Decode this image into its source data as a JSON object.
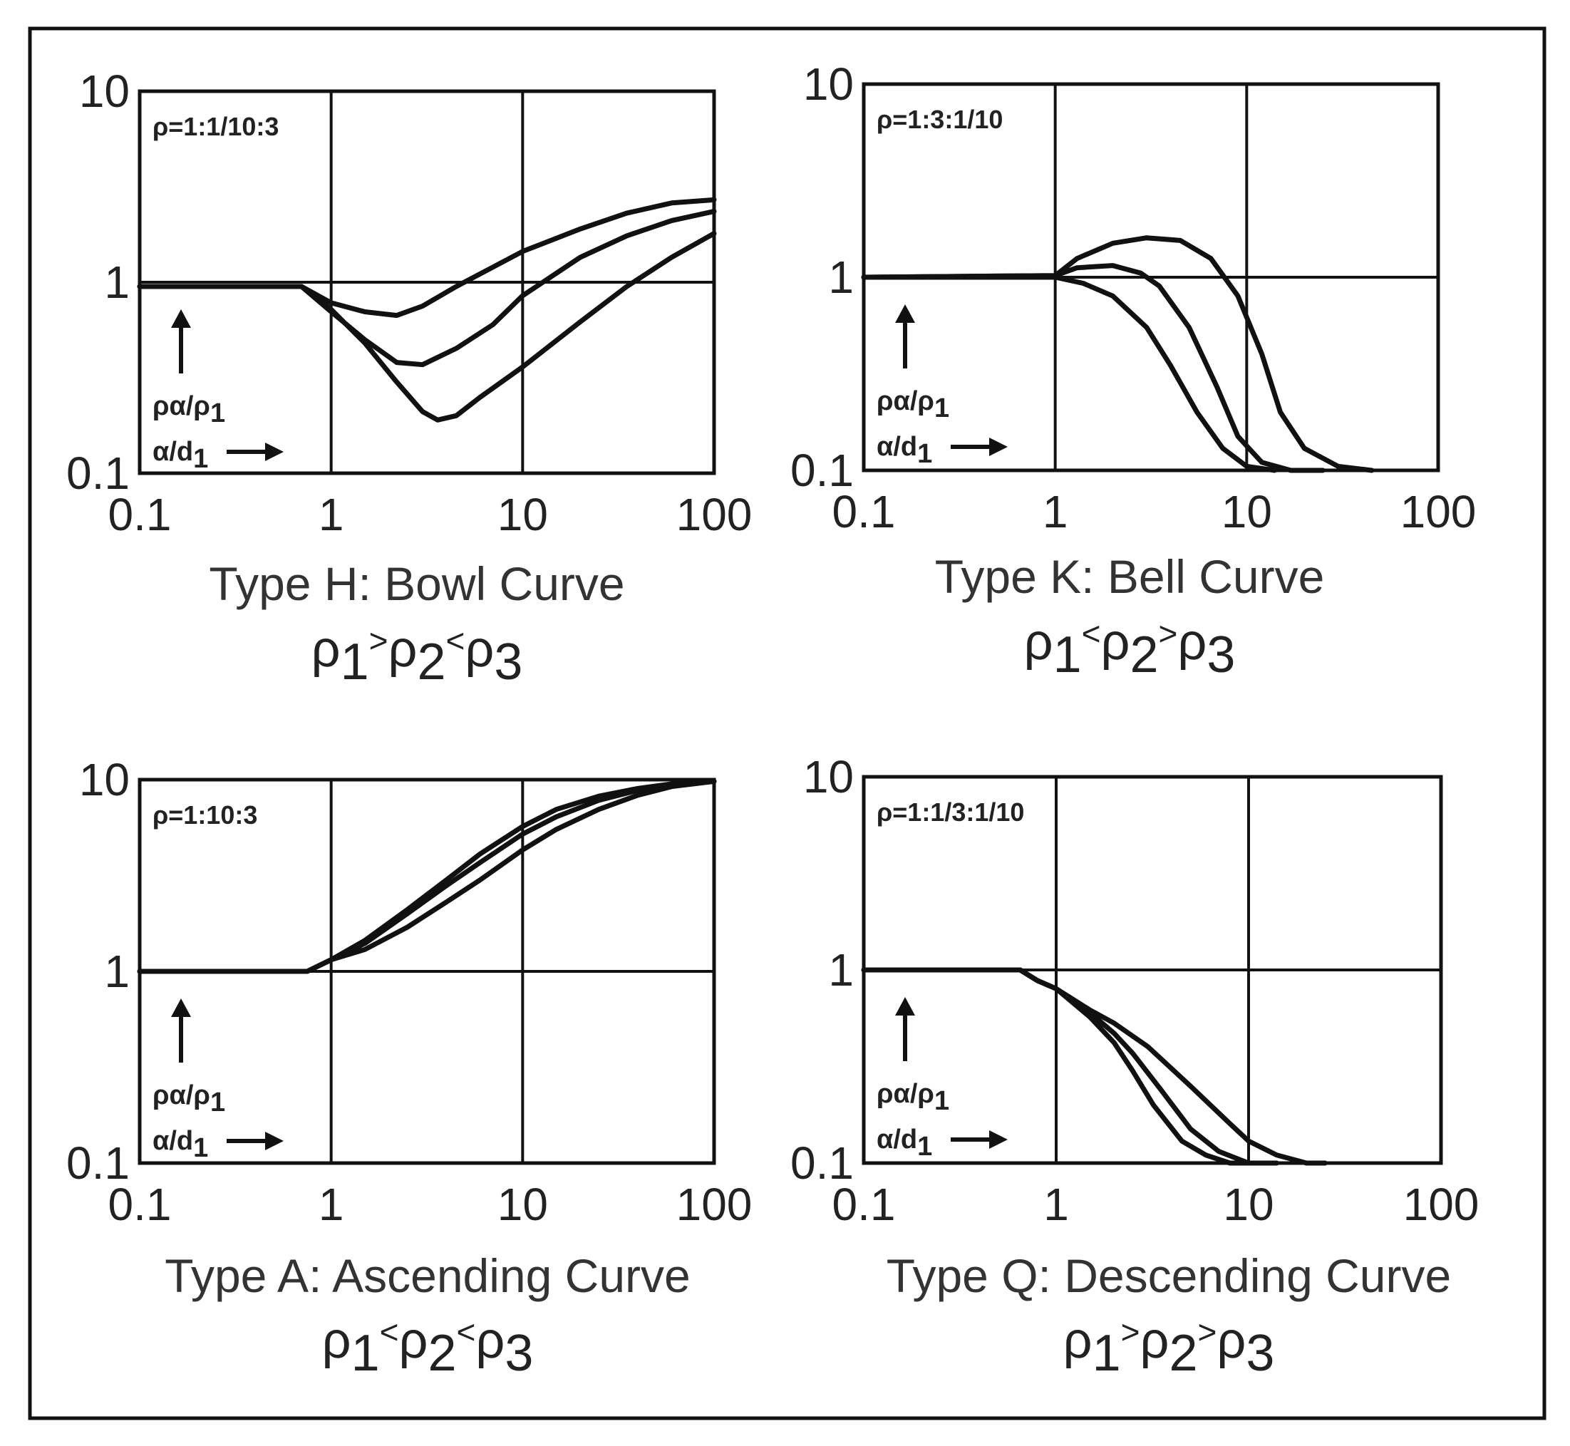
{
  "colors": {
    "line": "#111111",
    "text": "#222222",
    "background": "#ffffff"
  },
  "chart_data": [
    {
      "type": "line",
      "panel": "top-left",
      "title": "Type H: Bowl Curve",
      "condition": {
        "p1": "ρ",
        "s1": "1",
        "op1": ">",
        "p2": "ρ",
        "s2": "2",
        "op2": "<",
        "p3": "ρ",
        "s3": "3"
      },
      "ratio_label": "ρ=1:1/10:3",
      "ylabel": "ρα/ρ1",
      "xlabel": "α/d1",
      "ylabel_main": "ρα/ρ",
      "ylabel_sub": "1",
      "xlabel_main": "α/d",
      "xlabel_sub": "1",
      "x_scale": "log",
      "y_scale": "log",
      "xlim": [
        0.1,
        100
      ],
      "ylim": [
        0.1,
        10
      ],
      "x_ticks": [
        "0.1",
        "1",
        "10",
        "100"
      ],
      "y_ticks": [
        "0.1",
        "1",
        "10"
      ],
      "grid": true,
      "series": [
        {
          "x": [
            0.1,
            0.7,
            1,
            1.5,
            2.2,
            3,
            4.5,
            7,
            10,
            20,
            35,
            60,
            100
          ],
          "y": [
            0.95,
            0.95,
            0.78,
            0.7,
            0.67,
            0.75,
            0.95,
            1.2,
            1.45,
            1.9,
            2.3,
            2.6,
            2.7
          ]
        },
        {
          "x": [
            0.1,
            0.7,
            1,
            1.5,
            2.2,
            3,
            4.5,
            7,
            10,
            20,
            35,
            60,
            100
          ],
          "y": [
            0.95,
            0.95,
            0.7,
            0.5,
            0.38,
            0.37,
            0.45,
            0.6,
            0.85,
            1.35,
            1.75,
            2.1,
            2.35
          ]
        },
        {
          "x": [
            0.1,
            0.7,
            1,
            1.5,
            2.2,
            3,
            3.6,
            4.5,
            6,
            10,
            20,
            35,
            60,
            100
          ],
          "y": [
            0.95,
            0.95,
            0.72,
            0.48,
            0.3,
            0.21,
            0.19,
            0.2,
            0.25,
            0.36,
            0.62,
            0.95,
            1.35,
            1.8
          ]
        }
      ]
    },
    {
      "type": "line",
      "panel": "top-right",
      "title": "Type K: Bell Curve",
      "condition": {
        "p1": "ρ",
        "s1": "1",
        "op1": "<",
        "p2": "ρ",
        "s2": "2",
        "op2": ">",
        "p3": "ρ",
        "s3": "3"
      },
      "ratio_label": "ρ=1:3:1/10",
      "ylabel": "ρα/ρ1",
      "xlabel": "α/d1",
      "ylabel_main": "ρα/ρ",
      "ylabel_sub": "1",
      "xlabel_main": "α/d",
      "xlabel_sub": "1",
      "x_scale": "log",
      "y_scale": "log",
      "xlim": [
        0.1,
        100
      ],
      "ylim": [
        0.1,
        10
      ],
      "x_ticks": [
        "0.1",
        "1",
        "10",
        "100"
      ],
      "y_ticks": [
        "0.1",
        "1",
        "10"
      ],
      "grid": true,
      "series": [
        {
          "x": [
            0.1,
            1,
            1.3,
            2,
            3,
            4.5,
            6.5,
            9,
            12,
            15,
            20,
            30,
            45
          ],
          "y": [
            1.0,
            1.02,
            1.25,
            1.5,
            1.6,
            1.55,
            1.25,
            0.8,
            0.4,
            0.2,
            0.13,
            0.105,
            0.1
          ]
        },
        {
          "x": [
            0.1,
            1,
            1.3,
            2,
            2.8,
            3.5,
            5,
            7,
            9,
            12,
            17,
            25
          ],
          "y": [
            1.0,
            1.02,
            1.12,
            1.15,
            1.05,
            0.9,
            0.55,
            0.27,
            0.15,
            0.11,
            0.1,
            0.1
          ]
        },
        {
          "x": [
            0.1,
            1,
            1.4,
            2,
            3,
            4,
            5.5,
            7.5,
            10,
            14
          ],
          "y": [
            1.0,
            1.0,
            0.93,
            0.8,
            0.55,
            0.35,
            0.2,
            0.13,
            0.105,
            0.1
          ]
        }
      ]
    },
    {
      "type": "line",
      "panel": "bottom-left",
      "title": "Type A: Ascending Curve",
      "condition": {
        "p1": "ρ",
        "s1": "1",
        "op1": "<",
        "p2": "ρ",
        "s2": "2",
        "op2": "<",
        "p3": "ρ",
        "s3": "3"
      },
      "ratio_label": "ρ=1:10:3",
      "ylabel": "ρα/ρ1",
      "xlabel": "α/d1",
      "ylabel_main": "ρα/ρ",
      "ylabel_sub": "1",
      "xlabel_main": "α/d",
      "xlabel_sub": "1",
      "x_scale": "log",
      "y_scale": "log",
      "xlim": [
        0.1,
        100
      ],
      "ylim": [
        0.1,
        10
      ],
      "x_ticks": [
        "0.1",
        "1",
        "10",
        "100"
      ],
      "y_ticks": [
        "0.1",
        "1",
        "10"
      ],
      "grid": true,
      "series": [
        {
          "x": [
            0.1,
            0.75,
            1,
            1.5,
            2.5,
            4,
            6,
            10,
            15,
            25,
            40,
            60,
            100
          ],
          "y": [
            1.0,
            1.0,
            1.15,
            1.45,
            2.1,
            3.0,
            4.1,
            5.7,
            7.0,
            8.2,
            9.0,
            9.5,
            9.8
          ]
        },
        {
          "x": [
            0.1,
            0.75,
            1,
            1.5,
            2.5,
            4,
            6,
            10,
            15,
            25,
            40,
            60,
            100
          ],
          "y": [
            1.0,
            1.0,
            1.15,
            1.4,
            2.0,
            2.8,
            3.7,
            5.2,
            6.4,
            7.8,
            8.8,
            9.4,
            9.8
          ]
        },
        {
          "x": [
            0.1,
            0.75,
            1,
            1.5,
            2.5,
            4,
            6,
            10,
            15,
            25,
            40,
            60,
            100
          ],
          "y": [
            1.0,
            1.0,
            1.15,
            1.3,
            1.7,
            2.3,
            3.0,
            4.3,
            5.5,
            7.0,
            8.3,
            9.2,
            9.8
          ]
        }
      ]
    },
    {
      "type": "line",
      "panel": "bottom-right",
      "title": "Type Q: Descending Curve",
      "condition": {
        "p1": "ρ",
        "s1": "1",
        "op1": ">",
        "p2": "ρ",
        "s2": "2",
        "op2": ">",
        "p3": "ρ",
        "s3": "3"
      },
      "ratio_label": "ρ=1:1/3:1/10",
      "ylabel": "ρα/ρ1",
      "xlabel": "α/d1",
      "ylabel_main": "ρα/ρ",
      "ylabel_sub": "1",
      "xlabel_main": "α/d",
      "xlabel_sub": "1",
      "x_scale": "log",
      "y_scale": "log",
      "xlim": [
        0.1,
        100
      ],
      "ylim": [
        0.1,
        10
      ],
      "x_ticks": [
        "0.1",
        "1",
        "10",
        "100"
      ],
      "y_ticks": [
        "0.1",
        "1",
        "10"
      ],
      "grid": true,
      "series": [
        {
          "x": [
            0.1,
            0.65,
            0.8,
            1,
            1.5,
            2,
            3,
            5,
            8,
            10,
            14,
            20,
            25
          ],
          "y": [
            1.0,
            1.0,
            0.88,
            0.8,
            0.62,
            0.53,
            0.4,
            0.25,
            0.16,
            0.13,
            0.11,
            0.1,
            0.1
          ]
        },
        {
          "x": [
            0.1,
            0.65,
            0.8,
            1,
            1.5,
            2,
            2.5,
            3.5,
            5,
            7,
            10,
            14
          ],
          "y": [
            1.0,
            1.0,
            0.88,
            0.8,
            0.6,
            0.47,
            0.37,
            0.24,
            0.15,
            0.115,
            0.1,
            0.1
          ]
        },
        {
          "x": [
            0.1,
            0.65,
            0.8,
            1,
            1.5,
            2,
            2.5,
            3.2,
            4.5,
            6,
            8,
            11
          ],
          "y": [
            1.0,
            1.0,
            0.88,
            0.8,
            0.57,
            0.42,
            0.3,
            0.2,
            0.13,
            0.11,
            0.1,
            0.1
          ]
        }
      ]
    }
  ]
}
